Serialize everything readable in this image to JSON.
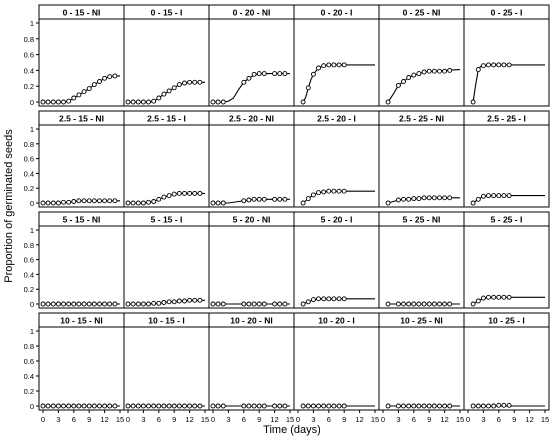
{
  "chart_data": {
    "type": "line",
    "xlabel": "Time (days)",
    "ylabel": "Proportion of germinated seeds",
    "xlim": [
      0,
      15
    ],
    "ylim": [
      0,
      1
    ],
    "x_ticks": [
      0,
      3,
      6,
      9,
      12,
      15
    ],
    "y_ticks": [
      0,
      0.2,
      0.4,
      0.6,
      0.8,
      1
    ],
    "x_tick_labels": [
      "0",
      "3",
      "6",
      "9",
      "12",
      "15"
    ],
    "y_tick_labels": [
      "0",
      "0.2",
      "0.4",
      "0.6",
      "0.8",
      "1"
    ],
    "marker": "open-circle",
    "line_color": "#000000",
    "grid": false,
    "columns": [
      "0 - 15 - NI",
      "0 - 15 - I",
      "0 - 20 - NI",
      "0 - 20 - I",
      "0 - 25 - NI",
      "0 - 25 - I"
    ],
    "panels": [
      [
        {
          "label": "0 - 15 - NI",
          "x": [
            0,
            1,
            2,
            3,
            4,
            5,
            6,
            7,
            8,
            9,
            10,
            11,
            12,
            13,
            14
          ],
          "y": [
            0,
            0,
            0,
            0,
            0,
            0.01,
            0.05,
            0.09,
            0.13,
            0.17,
            0.22,
            0.26,
            0.3,
            0.32,
            0.33
          ],
          "curve_x": [
            0,
            2,
            4,
            5,
            6,
            7,
            8,
            9,
            10,
            11,
            12,
            13,
            14,
            15
          ],
          "curve_y": [
            0,
            0,
            0,
            0.01,
            0.05,
            0.09,
            0.13,
            0.17,
            0.22,
            0.26,
            0.3,
            0.32,
            0.33,
            0.33
          ]
        },
        {
          "label": "0 - 15 - I",
          "x": [
            0,
            1,
            2,
            3,
            4,
            5,
            6,
            7,
            8,
            9,
            10,
            11,
            12,
            13,
            14
          ],
          "y": [
            0,
            0,
            0,
            0,
            0,
            0.01,
            0.05,
            0.1,
            0.14,
            0.18,
            0.22,
            0.24,
            0.25,
            0.25,
            0.25
          ],
          "curve_x": [
            0,
            2,
            4,
            5,
            6,
            7,
            8,
            9,
            10,
            11,
            12,
            13,
            14,
            15
          ],
          "curve_y": [
            0,
            0,
            0,
            0.01,
            0.05,
            0.1,
            0.14,
            0.18,
            0.22,
            0.24,
            0.25,
            0.25,
            0.25,
            0.25
          ]
        },
        {
          "label": "0 - 20 - NI",
          "x": [
            0,
            1,
            2,
            6,
            7,
            8,
            9,
            10,
            12,
            13,
            14
          ],
          "y": [
            0,
            0,
            0,
            0.25,
            0.3,
            0.35,
            0.36,
            0.36,
            0.36,
            0.36,
            0.36
          ],
          "curve_x": [
            0,
            2,
            3,
            4,
            5,
            6,
            7,
            8,
            9,
            10,
            12,
            14,
            15
          ],
          "curve_y": [
            0,
            0,
            0.01,
            0.05,
            0.16,
            0.25,
            0.3,
            0.34,
            0.36,
            0.36,
            0.36,
            0.36,
            0.36
          ]
        },
        {
          "label": "0 - 20 - I",
          "x": [
            1,
            2,
            3,
            4,
            5,
            6,
            7,
            8,
            9
          ],
          "y": [
            0,
            0.18,
            0.35,
            0.43,
            0.46,
            0.47,
            0.47,
            0.47,
            0.47
          ],
          "curve_x": [
            1,
            1.5,
            2,
            2.5,
            3,
            4,
            5,
            6,
            7,
            9,
            12,
            15
          ],
          "curve_y": [
            0,
            0.06,
            0.18,
            0.28,
            0.35,
            0.43,
            0.46,
            0.47,
            0.47,
            0.47,
            0.47,
            0.47
          ]
        },
        {
          "label": "0 - 25 - NI",
          "x": [
            1,
            3,
            4,
            5,
            6,
            7,
            8,
            9,
            10,
            11,
            12,
            13
          ],
          "y": [
            0,
            0.21,
            0.26,
            0.31,
            0.34,
            0.36,
            0.38,
            0.39,
            0.39,
            0.39,
            0.39,
            0.4
          ],
          "curve_x": [
            1,
            2,
            3,
            4,
            5,
            6,
            7,
            8,
            9,
            10,
            12,
            15
          ],
          "curve_y": [
            0,
            0.1,
            0.21,
            0.26,
            0.31,
            0.34,
            0.36,
            0.38,
            0.39,
            0.39,
            0.4,
            0.41
          ]
        },
        {
          "label": "0 - 25 - I",
          "x": [
            1,
            2,
            3,
            4,
            5,
            6,
            7,
            8
          ],
          "y": [
            0,
            0.41,
            0.46,
            0.47,
            0.47,
            0.47,
            0.47,
            0.47
          ],
          "curve_x": [
            1,
            1.5,
            2,
            2.5,
            3,
            4,
            6,
            10,
            15
          ],
          "curve_y": [
            0,
            0.22,
            0.41,
            0.45,
            0.46,
            0.47,
            0.47,
            0.47,
            0.47
          ]
        }
      ],
      [
        {
          "label": "2.5 - 15 - NI",
          "x": [
            0,
            1,
            2,
            3,
            4,
            5,
            6,
            7,
            8,
            9,
            10,
            11,
            12,
            13,
            14
          ],
          "y": [
            0,
            0,
            0,
            0,
            0.01,
            0.01,
            0.02,
            0.03,
            0.03,
            0.03,
            0.03,
            0.03,
            0.03,
            0.03,
            0.03
          ],
          "curve_x": [
            0,
            3,
            5,
            7,
            9,
            15
          ],
          "curve_y": [
            0,
            0,
            0.01,
            0.03,
            0.03,
            0.03
          ]
        },
        {
          "label": "2.5 - 15 - I",
          "x": [
            0,
            1,
            2,
            3,
            4,
            5,
            6,
            7,
            8,
            9,
            10,
            11,
            12,
            13,
            14
          ],
          "y": [
            0,
            0,
            0,
            0,
            0.01,
            0.02,
            0.05,
            0.08,
            0.1,
            0.12,
            0.13,
            0.13,
            0.13,
            0.13,
            0.13
          ],
          "curve_x": [
            0,
            3,
            5,
            6,
            7,
            8,
            9,
            10,
            11,
            15
          ],
          "curve_y": [
            0,
            0,
            0.02,
            0.05,
            0.08,
            0.1,
            0.12,
            0.13,
            0.13,
            0.13
          ]
        },
        {
          "label": "2.5 - 20 - NI",
          "x": [
            0,
            1,
            2,
            6,
            7,
            8,
            9,
            10,
            12,
            13,
            14
          ],
          "y": [
            0,
            0,
            0,
            0.03,
            0.04,
            0.05,
            0.05,
            0.05,
            0.05,
            0.05,
            0.05
          ],
          "curve_x": [
            0,
            3,
            5,
            6,
            7,
            8,
            9,
            15
          ],
          "curve_y": [
            0,
            0,
            0.02,
            0.03,
            0.04,
            0.05,
            0.05,
            0.05
          ]
        },
        {
          "label": "2.5 - 20 - I",
          "x": [
            1,
            2,
            3,
            4,
            5,
            6,
            7,
            8,
            9
          ],
          "y": [
            0,
            0.06,
            0.11,
            0.14,
            0.15,
            0.16,
            0.16,
            0.16,
            0.16
          ],
          "curve_x": [
            1,
            2,
            3,
            4,
            5,
            6,
            8,
            15
          ],
          "curve_y": [
            0,
            0.06,
            0.11,
            0.14,
            0.15,
            0.16,
            0.16,
            0.16
          ]
        },
        {
          "label": "2.5 - 25 - NI",
          "x": [
            1,
            3,
            4,
            5,
            6,
            7,
            8,
            9,
            10,
            11,
            12,
            13
          ],
          "y": [
            0,
            0.04,
            0.05,
            0.05,
            0.06,
            0.06,
            0.07,
            0.07,
            0.07,
            0.07,
            0.07,
            0.07
          ],
          "curve_x": [
            1,
            2,
            3,
            4,
            6,
            8,
            15
          ],
          "curve_y": [
            0,
            0.02,
            0.04,
            0.05,
            0.06,
            0.07,
            0.07
          ]
        },
        {
          "label": "2.5 - 25 - I",
          "x": [
            1,
            2,
            3,
            4,
            5,
            6,
            7,
            8
          ],
          "y": [
            0,
            0.05,
            0.09,
            0.1,
            0.1,
            0.1,
            0.1,
            0.1
          ],
          "curve_x": [
            1,
            2,
            3,
            4,
            5,
            15
          ],
          "curve_y": [
            0,
            0.05,
            0.09,
            0.1,
            0.1,
            0.1
          ]
        }
      ],
      [
        {
          "label": "5 - 15 - NI",
          "x": [
            0,
            1,
            2,
            3,
            4,
            5,
            6,
            7,
            8,
            9,
            10,
            11,
            12,
            13,
            14
          ],
          "y": [
            0,
            0,
            0,
            0,
            0,
            0,
            0,
            0,
            0,
            0,
            0,
            0,
            0,
            0,
            0
          ],
          "curve_x": [
            0,
            15
          ],
          "curve_y": [
            0,
            0
          ]
        },
        {
          "label": "5 - 15 - I",
          "x": [
            0,
            1,
            2,
            3,
            4,
            5,
            6,
            7,
            8,
            9,
            10,
            11,
            12,
            13,
            14
          ],
          "y": [
            0,
            0,
            0,
            0,
            0,
            0.01,
            0.01,
            0.02,
            0.03,
            0.03,
            0.04,
            0.04,
            0.05,
            0.05,
            0.05
          ],
          "curve_x": [
            0,
            4,
            6,
            8,
            10,
            12,
            14,
            15
          ],
          "curve_y": [
            0,
            0,
            0.01,
            0.03,
            0.04,
            0.05,
            0.05,
            0.05
          ]
        },
        {
          "label": "5 - 20 - NI",
          "x": [
            0,
            1,
            2,
            6,
            7,
            8,
            9,
            10,
            12,
            13,
            14
          ],
          "y": [
            0,
            0,
            0,
            0,
            0,
            0,
            0,
            0,
            0,
            0,
            0
          ],
          "curve_x": [
            0,
            15
          ],
          "curve_y": [
            0,
            0
          ]
        },
        {
          "label": "5 - 20 - I",
          "x": [
            1,
            2,
            3,
            4,
            5,
            6,
            7,
            8,
            9
          ],
          "y": [
            0,
            0.03,
            0.06,
            0.07,
            0.07,
            0.07,
            0.07,
            0.07,
            0.07
          ],
          "curve_x": [
            1,
            2,
            3,
            4,
            5,
            15
          ],
          "curve_y": [
            0,
            0.03,
            0.06,
            0.07,
            0.07,
            0.07
          ]
        },
        {
          "label": "5 - 25 - NI",
          "x": [
            1,
            3,
            4,
            5,
            6,
            7,
            8,
            9,
            10,
            11,
            12,
            13
          ],
          "y": [
            0,
            0,
            0,
            0,
            0,
            0,
            0,
            0,
            0,
            0,
            0,
            0
          ],
          "curve_x": [
            1,
            15
          ],
          "curve_y": [
            0,
            0
          ]
        },
        {
          "label": "5 - 25 - I",
          "x": [
            1,
            2,
            3,
            4,
            5,
            6,
            7,
            8
          ],
          "y": [
            0,
            0.04,
            0.08,
            0.09,
            0.09,
            0.09,
            0.09,
            0.09
          ],
          "curve_x": [
            1,
            2,
            3,
            4,
            5,
            15
          ],
          "curve_y": [
            0,
            0.04,
            0.08,
            0.09,
            0.09,
            0.09
          ]
        }
      ],
      [
        {
          "label": "10 - 15 - NI",
          "x": [
            0,
            1,
            2,
            3,
            4,
            5,
            6,
            7,
            8,
            9,
            10,
            11,
            12,
            13,
            14
          ],
          "y": [
            0,
            0,
            0,
            0,
            0,
            0,
            0,
            0,
            0,
            0,
            0,
            0,
            0,
            0,
            0
          ],
          "curve_x": [
            0,
            15
          ],
          "curve_y": [
            0,
            0
          ]
        },
        {
          "label": "10 - 15 - I",
          "x": [
            0,
            1,
            2,
            3,
            4,
            5,
            6,
            7,
            8,
            9,
            10,
            11,
            12,
            13,
            14
          ],
          "y": [
            0,
            0,
            0,
            0,
            0,
            0,
            0,
            0,
            0,
            0,
            0,
            0,
            0,
            0,
            0
          ],
          "curve_x": [
            0,
            15
          ],
          "curve_y": [
            0,
            0
          ]
        },
        {
          "label": "10 - 20 - NI",
          "x": [
            0,
            1,
            2,
            6,
            7,
            8,
            9,
            10,
            12,
            13,
            14
          ],
          "y": [
            0,
            0,
            0,
            0,
            0,
            0,
            0,
            0,
            0,
            0,
            0
          ],
          "curve_x": [
            0,
            15
          ],
          "curve_y": [
            0,
            0
          ]
        },
        {
          "label": "10 - 20 - I",
          "x": [
            1,
            2,
            3,
            4,
            5,
            6,
            7,
            8,
            9
          ],
          "y": [
            0,
            0,
            0,
            0,
            0,
            0,
            0,
            0,
            0
          ],
          "curve_x": [
            1,
            15
          ],
          "curve_y": [
            0,
            0
          ]
        },
        {
          "label": "10 - 25 - NI",
          "x": [
            1,
            3,
            4,
            5,
            6,
            7,
            8,
            9,
            10,
            11,
            12,
            13
          ],
          "y": [
            0,
            0,
            0,
            0,
            0,
            0,
            0,
            0,
            0,
            0,
            0,
            0
          ],
          "curve_x": [
            1,
            15
          ],
          "curve_y": [
            0,
            0
          ]
        },
        {
          "label": "10 - 25 - I",
          "x": [
            1,
            2,
            3,
            4,
            5,
            6,
            7,
            8
          ],
          "y": [
            0,
            0,
            0,
            0,
            0,
            0.01,
            0.01,
            0.01
          ],
          "curve_x": [
            1,
            15
          ],
          "curve_y": [
            0,
            0
          ]
        }
      ]
    ]
  }
}
